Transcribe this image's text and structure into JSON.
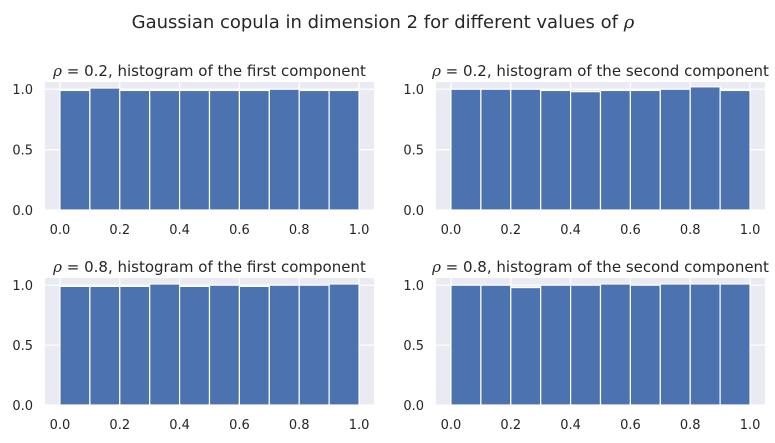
{
  "figure": {
    "title_prefix": "Gaussian copula in dimension 2 for different values of ",
    "title_symbol": "ρ"
  },
  "colors": {
    "background": "#ffffff",
    "axes_face": "#eaeaf2",
    "grid": "#ffffff",
    "bar_fill": "#4c72b0",
    "bar_edge": "#ffffff",
    "text": "#262626"
  },
  "chart_data": [
    {
      "type": "bar",
      "title_symbol": "ρ",
      "title_value": " = 0.2",
      "title_text": ", histogram of the first component",
      "bin_edges": [
        0.0,
        0.1,
        0.2,
        0.3,
        0.4,
        0.5,
        0.6,
        0.7,
        0.8,
        0.9,
        1.0
      ],
      "values": [
        0.99,
        1.01,
        0.99,
        0.99,
        0.99,
        0.99,
        0.99,
        1.0,
        0.99,
        0.99
      ],
      "xlim": [
        -0.05,
        1.05
      ],
      "ylim": [
        0,
        1.06
      ],
      "xticks": [
        "0.0",
        "0.2",
        "0.4",
        "0.6",
        "0.8",
        "1.0"
      ],
      "yticks": [
        "0.0",
        "0.5",
        "1.0"
      ],
      "grid": true
    },
    {
      "type": "bar",
      "title_symbol": "ρ",
      "title_value": " = 0.2",
      "title_text": ", histogram of the second component",
      "bin_edges": [
        0.0,
        0.1,
        0.2,
        0.3,
        0.4,
        0.5,
        0.6,
        0.7,
        0.8,
        0.9,
        1.0
      ],
      "values": [
        1.0,
        1.0,
        1.0,
        0.99,
        0.98,
        0.99,
        0.99,
        1.0,
        1.02,
        0.99
      ],
      "xlim": [
        -0.05,
        1.05
      ],
      "ylim": [
        0,
        1.06
      ],
      "xticks": [
        "0.0",
        "0.2",
        "0.4",
        "0.6",
        "0.8",
        "1.0"
      ],
      "yticks": [
        "0.0",
        "0.5",
        "1.0"
      ],
      "grid": true
    },
    {
      "type": "bar",
      "title_symbol": "ρ",
      "title_value": " = 0.8",
      "title_text": ", histogram of the first component",
      "bin_edges": [
        0.0,
        0.1,
        0.2,
        0.3,
        0.4,
        0.5,
        0.6,
        0.7,
        0.8,
        0.9,
        1.0
      ],
      "values": [
        0.99,
        0.99,
        0.99,
        1.01,
        0.99,
        1.0,
        0.99,
        1.0,
        1.0,
        1.01
      ],
      "xlim": [
        -0.05,
        1.05
      ],
      "ylim": [
        0,
        1.06
      ],
      "xticks": [
        "0.0",
        "0.2",
        "0.4",
        "0.6",
        "0.8",
        "1.0"
      ],
      "yticks": [
        "0.0",
        "0.5",
        "1.0"
      ],
      "grid": true
    },
    {
      "type": "bar",
      "title_symbol": "ρ",
      "title_value": " = 0.8",
      "title_text": ", histogram of the second component",
      "bin_edges": [
        0.0,
        0.1,
        0.2,
        0.3,
        0.4,
        0.5,
        0.6,
        0.7,
        0.8,
        0.9,
        1.0
      ],
      "values": [
        1.0,
        1.0,
        0.98,
        1.0,
        1.0,
        1.01,
        1.0,
        1.01,
        1.01,
        1.01
      ],
      "xlim": [
        -0.05,
        1.05
      ],
      "ylim": [
        0,
        1.06
      ],
      "xticks": [
        "0.0",
        "0.2",
        "0.4",
        "0.6",
        "0.8",
        "1.0"
      ],
      "yticks": [
        "0.0",
        "0.5",
        "1.0"
      ],
      "grid": true
    }
  ]
}
